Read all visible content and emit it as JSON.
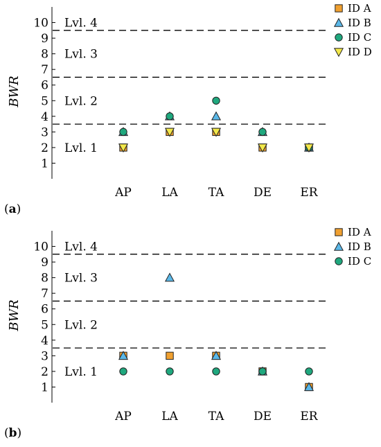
{
  "chart_data": [
    {
      "type": "scatter",
      "panel_label": "a",
      "title": "",
      "xlabel": "",
      "ylabel": "BWR",
      "categories": [
        "AP",
        "LA",
        "TA",
        "DE",
        "ER"
      ],
      "yticks": [
        1,
        2,
        3,
        4,
        5,
        6,
        7,
        8,
        9,
        10
      ],
      "ylim": [
        0,
        11
      ],
      "thresholds": [
        3.5,
        6.5,
        9.5
      ],
      "levels": [
        {
          "label": "Lvl. 1",
          "y": 2
        },
        {
          "label": "Lvl. 2",
          "y": 5
        },
        {
          "label": "Lvl. 3",
          "y": 8
        },
        {
          "label": "Lvl. 4",
          "y": 10
        }
      ],
      "grid": false,
      "legend_position": "top-right",
      "series": [
        {
          "name": "ID A",
          "marker": "square",
          "color": "#F0A030",
          "values": [
            2,
            3,
            3,
            2,
            2
          ]
        },
        {
          "name": "ID B",
          "marker": "triangle-up",
          "color": "#5BB8E8",
          "values": [
            3,
            4,
            4,
            3,
            2
          ]
        },
        {
          "name": "ID C",
          "marker": "circle",
          "color": "#1FA87E",
          "values": [
            3,
            4,
            5,
            3,
            2
          ]
        },
        {
          "name": "ID D",
          "marker": "triangle-down",
          "color": "#F2E84A",
          "values": [
            2,
            3,
            3,
            2,
            2
          ]
        }
      ]
    },
    {
      "type": "scatter",
      "panel_label": "b",
      "title": "",
      "xlabel": "",
      "ylabel": "BWR",
      "categories": [
        "AP",
        "LA",
        "TA",
        "DE",
        "ER"
      ],
      "yticks": [
        1,
        2,
        3,
        4,
        5,
        6,
        7,
        8,
        9,
        10
      ],
      "ylim": [
        0,
        11
      ],
      "thresholds": [
        3.5,
        6.5,
        9.5
      ],
      "levels": [
        {
          "label": "Lvl. 1",
          "y": 2
        },
        {
          "label": "Lvl. 2",
          "y": 5
        },
        {
          "label": "Lvl. 3",
          "y": 8
        },
        {
          "label": "Lvl. 4",
          "y": 10
        }
      ],
      "grid": false,
      "legend_position": "top-right",
      "series": [
        {
          "name": "ID A",
          "marker": "square",
          "color": "#F0A030",
          "values": [
            3,
            3,
            3,
            2,
            1
          ]
        },
        {
          "name": "ID B",
          "marker": "triangle-up",
          "color": "#5BB8E8",
          "values": [
            3,
            8,
            3,
            2,
            1
          ]
        },
        {
          "name": "ID C",
          "marker": "circle",
          "color": "#1FA87E",
          "values": [
            2,
            2,
            2,
            2,
            2
          ]
        }
      ]
    }
  ]
}
